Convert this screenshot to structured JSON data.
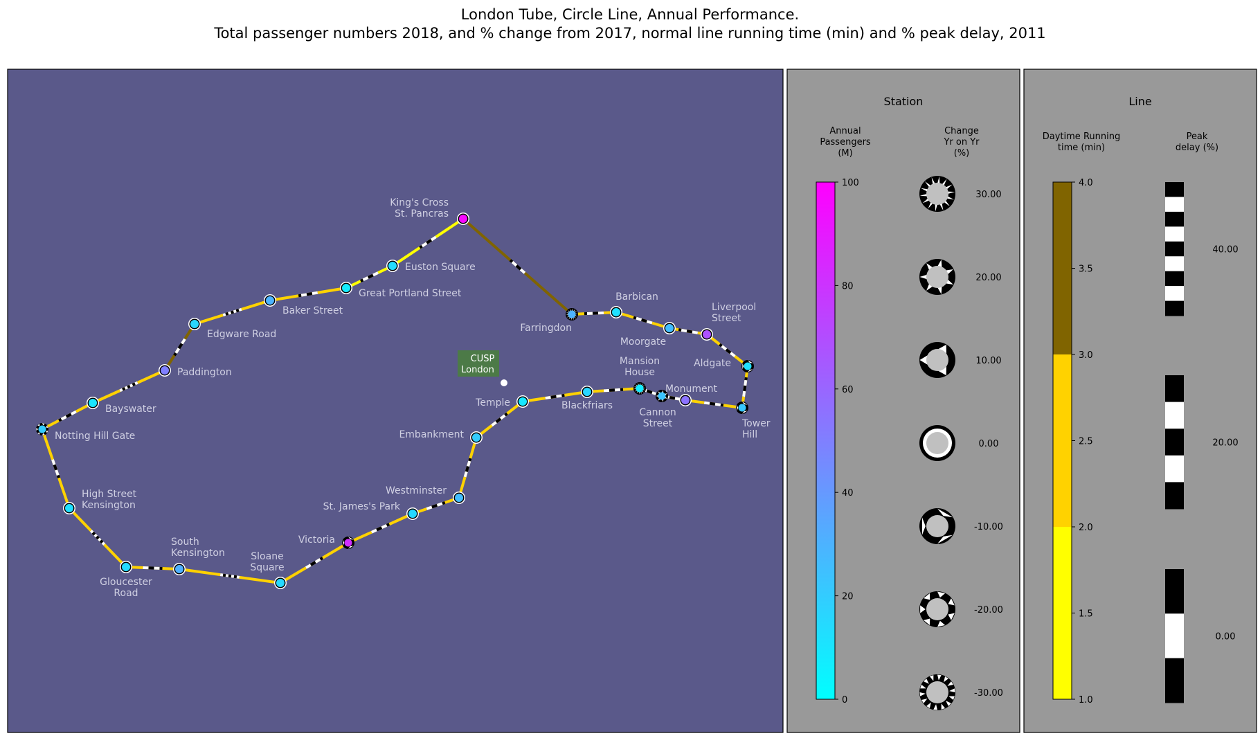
{
  "title": {
    "line1": "London Tube, Circle Line, Annual Performance.",
    "line2": "Total passenger numbers 2018, and % change from 2017, normal line running time (min) and % peak delay, 2011"
  },
  "colors": {
    "map_bg": "#5a598a",
    "panel_bg": "#999999",
    "station_label": "#cfcfe2",
    "landmark_box": "#4c7a47",
    "passenger_low": "#00ffff",
    "passenger_high": "#ff00ff",
    "running_1_2": "#ffff00",
    "running_2_3": "#ffd200",
    "running_3_4": "#806400"
  },
  "landmark": {
    "label_line1": "CUSP",
    "label_line2": "London"
  },
  "stations": [
    {
      "name": [
        "King's Cross",
        "St. Pancras"
      ],
      "passengers": 97,
      "change": 0
    },
    {
      "name": [
        "Euston Square"
      ],
      "passengers": 14,
      "change": 0
    },
    {
      "name": [
        "Great Portland Street"
      ],
      "passengers": 8,
      "change": 0
    },
    {
      "name": [
        "Baker Street"
      ],
      "passengers": 30,
      "change": 0
    },
    {
      "name": [
        "Edgware Road"
      ],
      "passengers": 16,
      "change": 0
    },
    {
      "name": [
        "Paddington"
      ],
      "passengers": 50,
      "change": 0
    },
    {
      "name": [
        "Bayswater"
      ],
      "passengers": 10,
      "change": 0
    },
    {
      "name": [
        "Notting Hill Gate"
      ],
      "passengers": 20,
      "change": -20
    },
    {
      "name": [
        "High Street",
        "Kensington"
      ],
      "passengers": 12,
      "change": 0
    },
    {
      "name": [
        "Gloucester",
        "Road"
      ],
      "passengers": 14,
      "change": 0
    },
    {
      "name": [
        "South",
        "Kensington"
      ],
      "passengers": 31,
      "change": 0
    },
    {
      "name": [
        "Sloane",
        "Square"
      ],
      "passengers": 15,
      "change": 0
    },
    {
      "name": [
        "Victoria"
      ],
      "passengers": 82,
      "change": -10
    },
    {
      "name": [
        "St. James's Park"
      ],
      "passengers": 15,
      "change": 0
    },
    {
      "name": [
        "Westminster"
      ],
      "passengers": 26,
      "change": 0
    },
    {
      "name": [
        "Embankment"
      ],
      "passengers": 20,
      "change": 0
    },
    {
      "name": [
        "Temple"
      ],
      "passengers": 9,
      "change": 0
    },
    {
      "name": [
        "Blackfriars"
      ],
      "passengers": 16,
      "change": 0
    },
    {
      "name": [
        "Mansion",
        "House"
      ],
      "passengers": 8,
      "change": 30
    },
    {
      "name": [
        "Cannon",
        "Street"
      ],
      "passengers": 23,
      "change": 20
    },
    {
      "name": [
        "Monument"
      ],
      "passengers": 55,
      "change": 0
    },
    {
      "name": [
        "Tower",
        "Hill"
      ],
      "passengers": 22,
      "change": -10
    },
    {
      "name": [
        "Aldgate"
      ],
      "passengers": 13,
      "change": -10
    },
    {
      "name": [
        "Liverpool",
        "Street"
      ],
      "passengers": 68,
      "change": 0
    },
    {
      "name": [
        "Moorgate"
      ],
      "passengers": 26,
      "change": 0
    },
    {
      "name": [
        "Barbican"
      ],
      "passengers": 12,
      "change": 0
    },
    {
      "name": [
        "Farringdon"
      ],
      "passengers": 30,
      "change": 30
    }
  ],
  "segments": [
    {
      "from": 0,
      "to": 1,
      "running": 1.5,
      "delay": 0
    },
    {
      "from": 1,
      "to": 2,
      "running": 1.5,
      "delay": 0
    },
    {
      "from": 2,
      "to": 3,
      "running": 2.5,
      "delay": 0
    },
    {
      "from": 3,
      "to": 4,
      "running": 2.5,
      "delay": 40
    },
    {
      "from": 4,
      "to": 5,
      "running": 3.5,
      "delay": 0
    },
    {
      "from": 5,
      "to": 6,
      "running": 2.5,
      "delay": 40
    },
    {
      "from": 6,
      "to": 7,
      "running": 2.5,
      "delay": 0
    },
    {
      "from": 7,
      "to": 8,
      "running": 2.5,
      "delay": 0
    },
    {
      "from": 8,
      "to": 9,
      "running": 2.5,
      "delay": 40
    },
    {
      "from": 9,
      "to": 10,
      "running": 2.5,
      "delay": 0
    },
    {
      "from": 10,
      "to": 11,
      "running": 2.5,
      "delay": 40
    },
    {
      "from": 11,
      "to": 12,
      "running": 2.5,
      "delay": 0
    },
    {
      "from": 12,
      "to": 13,
      "running": 2.5,
      "delay": 0
    },
    {
      "from": 13,
      "to": 14,
      "running": 2.5,
      "delay": 0
    },
    {
      "from": 14,
      "to": 15,
      "running": 2.5,
      "delay": 0
    },
    {
      "from": 15,
      "to": 16,
      "running": 2.5,
      "delay": 0
    },
    {
      "from": 16,
      "to": 17,
      "running": 2.5,
      "delay": 0
    },
    {
      "from": 17,
      "to": 18,
      "running": 2.5,
      "delay": 0
    },
    {
      "from": 18,
      "to": 19,
      "running": 2.5,
      "delay": 0
    },
    {
      "from": 19,
      "to": 20,
      "running": 2.5,
      "delay": 0
    },
    {
      "from": 20,
      "to": 21,
      "running": 2.5,
      "delay": 0
    },
    {
      "from": 21,
      "to": 22,
      "running": 2.5,
      "delay": 0
    },
    {
      "from": 22,
      "to": 23,
      "running": 2.5,
      "delay": 0
    },
    {
      "from": 23,
      "to": 24,
      "running": 2.5,
      "delay": 0
    },
    {
      "from": 24,
      "to": 25,
      "running": 2.5,
      "delay": 0
    },
    {
      "from": 25,
      "to": 26,
      "running": 2.5,
      "delay": 0
    },
    {
      "from": 26,
      "to": 0,
      "running": 3.5,
      "delay": 0
    }
  ],
  "station_panel": {
    "title": "Station",
    "passengers_header": [
      "Annual",
      "Passengers",
      "(M)"
    ],
    "change_header": [
      "Change",
      "Yr on Yr",
      "(%)"
    ],
    "passenger_range": [
      0,
      100
    ],
    "passenger_ticks": [
      "0",
      "20",
      "40",
      "60",
      "80",
      "100"
    ],
    "change_values": [
      30,
      20,
      10,
      0,
      -10,
      -20,
      -30
    ],
    "change_labels": [
      "30.00",
      "20.00",
      "10.00",
      "0.00",
      "-10.00",
      "-20.00",
      "-30.00"
    ]
  },
  "line_panel": {
    "title": "Line",
    "running_header": [
      "Daytime Running",
      "time (min)"
    ],
    "delay_header": [
      "Peak",
      "delay (%)"
    ],
    "running_range": [
      1.0,
      4.0
    ],
    "running_ticks": [
      "1.0",
      "1.5",
      "2.0",
      "2.5",
      "3.0",
      "3.5",
      "4.0"
    ],
    "delay_values": [
      40,
      20,
      0
    ],
    "delay_labels": [
      "40.00",
      "20.00",
      "0.00"
    ]
  }
}
